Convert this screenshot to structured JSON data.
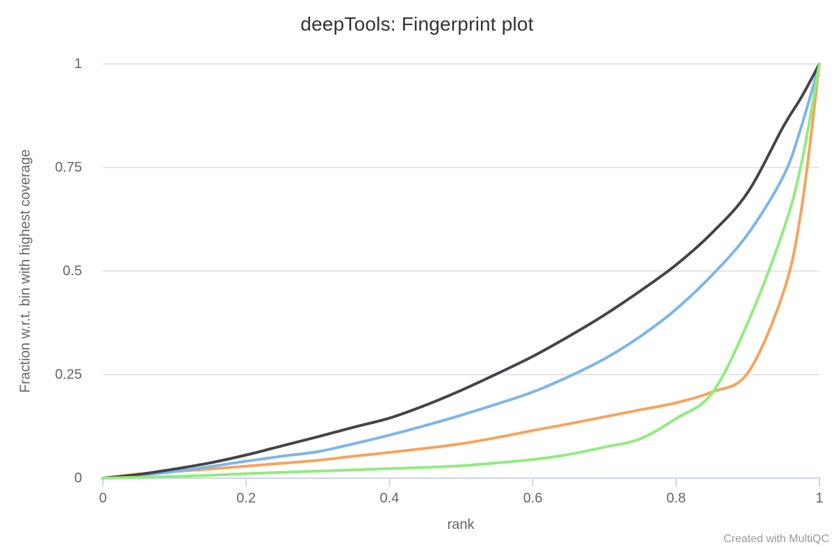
{
  "page": {
    "watermark": "Created with MultiQC"
  },
  "chart_data": {
    "type": "line",
    "title": "deepTools: Fingerprint plot",
    "xlabel": "rank",
    "ylabel": "Fraction w.r.t. bin with highest coverage",
    "xlim": [
      0,
      1
    ],
    "ylim": [
      0,
      1
    ],
    "xticks": [
      0,
      0.2,
      0.4,
      0.6,
      0.8,
      1
    ],
    "xtick_labels": [
      "0",
      "0.2",
      "0.4",
      "0.6",
      "0.8",
      "1"
    ],
    "yticks": [
      0,
      0.25,
      0.5,
      0.75,
      1
    ],
    "ytick_labels": [
      "0",
      "0.25",
      "0.5",
      "0.75",
      "1"
    ],
    "grid": "horizontal-only",
    "legend": "none",
    "x": [
      0,
      0.05,
      0.1,
      0.15,
      0.2,
      0.25,
      0.3,
      0.35,
      0.4,
      0.45,
      0.5,
      0.55,
      0.6,
      0.65,
      0.7,
      0.75,
      0.8,
      0.85,
      0.9,
      0.95,
      0.975,
      1
    ],
    "series": [
      {
        "name": "orange-series",
        "color": "#f7a35c",
        "values": [
          0,
          0.01,
          0.016,
          0.022,
          0.029,
          0.036,
          0.043,
          0.053,
          0.062,
          0.072,
          0.083,
          0.098,
          0.115,
          0.131,
          0.148,
          0.165,
          0.182,
          0.208,
          0.254,
          0.45,
          0.65,
          1
        ]
      },
      {
        "name": "blue-series",
        "color": "#7cb5ec",
        "values": [
          0,
          0.007,
          0.016,
          0.028,
          0.041,
          0.053,
          0.064,
          0.083,
          0.104,
          0.127,
          0.152,
          0.179,
          0.208,
          0.245,
          0.288,
          0.342,
          0.408,
          0.49,
          0.589,
          0.73,
          0.85,
          1
        ]
      },
      {
        "name": "black-series",
        "color": "#434348",
        "values": [
          0,
          0.009,
          0.022,
          0.037,
          0.056,
          0.078,
          0.1,
          0.123,
          0.145,
          0.176,
          0.212,
          0.252,
          0.294,
          0.342,
          0.394,
          0.452,
          0.515,
          0.592,
          0.69,
          0.85,
          0.92,
          1
        ]
      },
      {
        "name": "green-series",
        "color": "#90ed7d",
        "values": [
          0,
          0.002,
          0.004,
          0.007,
          0.011,
          0.014,
          0.017,
          0.02,
          0.023,
          0.026,
          0.03,
          0.037,
          0.045,
          0.057,
          0.075,
          0.095,
          0.144,
          0.205,
          0.375,
          0.6,
          0.76,
          1
        ]
      }
    ],
    "colors": {
      "title_text": "#333333",
      "axis_label_text": "#666666",
      "tick_label_text": "#666666",
      "watermark_text": "#999999",
      "axis_line": "#ccd6eb",
      "grid_line": "#e6e6e6",
      "background": "#ffffff"
    }
  }
}
